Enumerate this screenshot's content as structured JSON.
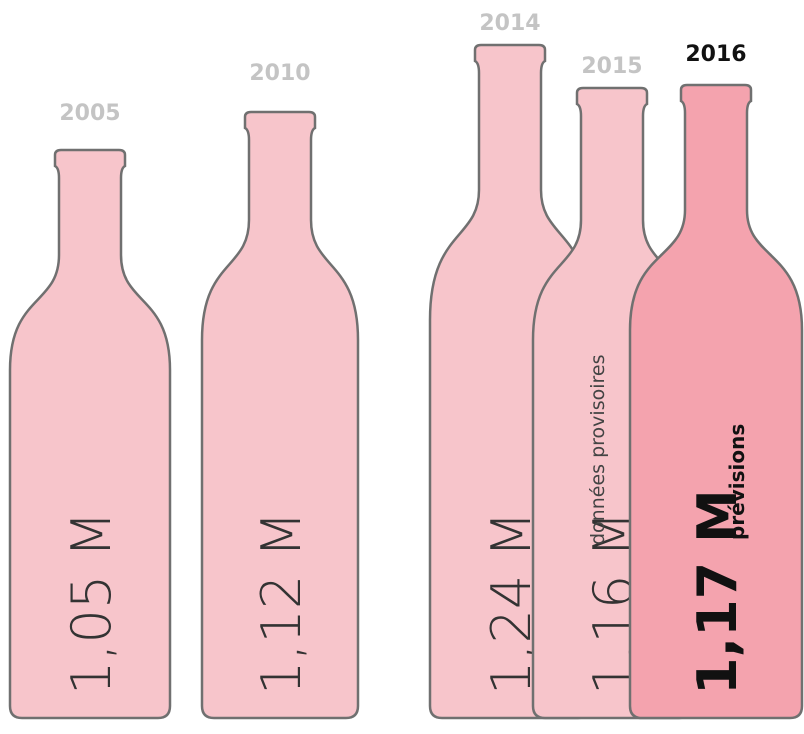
{
  "bottles": [
    {
      "year": "2005",
      "value": "1,05 M"
    },
    {
      "year": "2010",
      "value": "1,12 M"
    },
    {
      "year": "2014",
      "value": "1,24 M"
    },
    {
      "year": "2015",
      "value": "1,16 M",
      "note": "données provisoires"
    },
    {
      "year": "2016",
      "value": "1,17 M",
      "note": "prévisions"
    }
  ]
}
